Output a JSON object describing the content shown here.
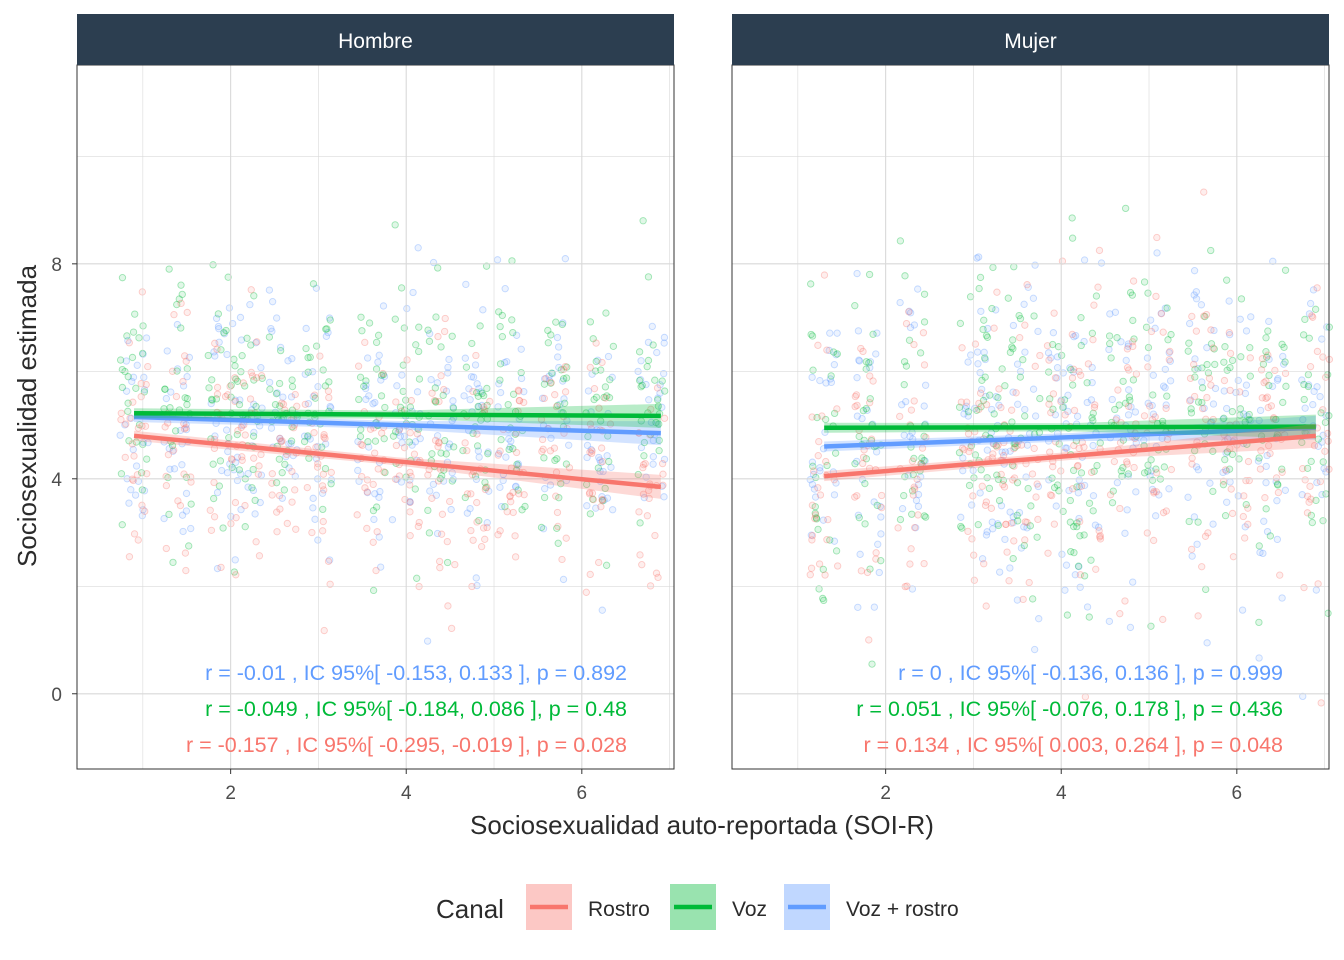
{
  "chart_data": {
    "type": "scatter",
    "xlabel": "Sociosexualidad auto-reportada (SOI-R)",
    "ylabel": "Sociosexualidad estimada",
    "xlim": [
      0.25,
      7.05
    ],
    "ylim": [
      -1.4,
      11.7
    ],
    "x_ticks": [
      2,
      4,
      6
    ],
    "y_ticks": [
      0,
      4,
      8
    ],
    "grid": true,
    "legend": {
      "title": "Canal",
      "position": "bottom",
      "entries": [
        {
          "name": "Rostro",
          "color": "#F8766D"
        },
        {
          "name": "Voz",
          "color": "#00BA38"
        },
        {
          "name": "Voz + rostro",
          "color": "#619CFF"
        }
      ]
    },
    "colors": {
      "Rostro": "#F8766D",
      "Voz": "#00BA38",
      "Voz + rostro": "#619CFF",
      "strip": "#2C3E50",
      "strip_text": "#FFFFFF"
    },
    "panels": [
      {
        "name": "Hombre",
        "x_columns": [
          0.9,
          1.4,
          1.9,
          2.2,
          2.6,
          3.0,
          3.6,
          4.0,
          4.4,
          4.8,
          5.2,
          5.7,
          6.2,
          6.8
        ],
        "series": [
          {
            "name": "Voz + rostro",
            "fit": {
              "x": [
                0.9,
                6.9
              ],
              "y": [
                5.15,
                4.85
              ]
            },
            "annotation": "r =  -0.01 , IC 95%[ -0.153, 0.133 ], p =  0.892"
          },
          {
            "name": "Voz",
            "fit": {
              "x": [
                0.9,
                6.9
              ],
              "y": [
                5.22,
                5.17
              ]
            },
            "annotation": "r =  -0.049 , IC 95%[ -0.184, 0.086 ], p =  0.48"
          },
          {
            "name": "Rostro",
            "fit": {
              "x": [
                0.9,
                6.9
              ],
              "y": [
                4.8,
                3.85
              ]
            },
            "annotation": "r =  -0.157 , IC 95%[ -0.295, -0.019 ], p =  0.028"
          }
        ]
      },
      {
        "name": "Mujer",
        "x_columns": [
          1.3,
          1.8,
          2.3,
          3.0,
          3.3,
          3.6,
          4.0,
          4.3,
          4.7,
          5.1,
          5.6,
          6.0,
          6.4,
          6.9
        ],
        "series": [
          {
            "name": "Voz + rostro",
            "fit": {
              "x": [
                1.3,
                6.9
              ],
              "y": [
                4.6,
                4.95
              ]
            },
            "annotation": "r =  0 , IC 95%[ -0.136, 0.136 ], p =  0.999"
          },
          {
            "name": "Voz",
            "fit": {
              "x": [
                1.3,
                6.9
              ],
              "y": [
                4.95,
                4.97
              ]
            },
            "annotation": "r =  0.051 , IC 95%[ -0.076, 0.178 ], p =  0.436"
          },
          {
            "name": "Rostro",
            "fit": {
              "x": [
                1.3,
                6.9
              ],
              "y": [
                4.05,
                4.8
              ]
            },
            "annotation": "r =  0.134 , IC 95%[ 0.003, 0.264 ], p =  0.048"
          }
        ]
      }
    ]
  }
}
